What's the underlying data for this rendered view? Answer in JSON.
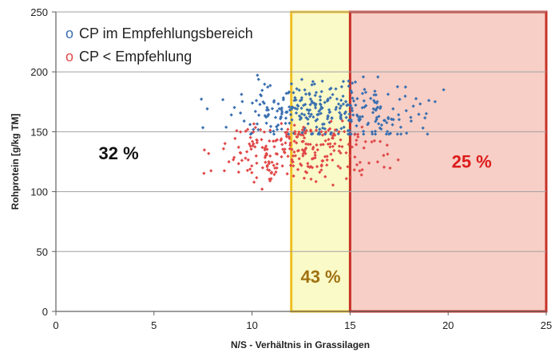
{
  "chart_data": {
    "type": "scatter",
    "title": "",
    "xlabel": "N/S - Verhältnis in Grassilagen",
    "ylabel": "Rohprotein [g/kg TM]",
    "xlim": [
      0,
      25
    ],
    "ylim": [
      0,
      250
    ],
    "x_ticks": [
      "0",
      "5",
      "10",
      "15",
      "20",
      "25"
    ],
    "y_ticks": [
      "0",
      "50",
      "100",
      "150",
      "200",
      "250"
    ],
    "grid": "horizontal",
    "legend_placement": "top-left",
    "series": [
      {
        "name": "CP im Empfehlungsbereich",
        "marker": "o",
        "color": "#3a6fb0",
        "cloud": {
          "count": 330,
          "x_range": [
            5.9,
            21.1
          ],
          "y_range": [
            148,
            224
          ],
          "x_center": 13.8,
          "y_center": 166
        }
      },
      {
        "name": "CP < Empfehlung",
        "marker": "o",
        "color": "#e04848",
        "cloud": {
          "count": 260,
          "x_range": [
            5.6,
            18.0
          ],
          "y_range": [
            82,
            165
          ],
          "x_center": 12.5,
          "y_center": 133
        }
      }
    ],
    "regions": [
      {
        "x_from": 12,
        "x_to": 15,
        "fill": "#fafac8",
        "stroke": "#f0c020"
      },
      {
        "x_from": 15,
        "x_to": 25,
        "fill": "#f7cfc6",
        "stroke": "#c83228"
      }
    ],
    "annotations": [
      {
        "text": "32 %",
        "x": 3.2,
        "y": 127,
        "color": "#111111"
      },
      {
        "text": "43 %",
        "x": 13.5,
        "y": 24,
        "color": "#a07010"
      },
      {
        "text": "25 %",
        "x": 21.2,
        "y": 120,
        "color": "#dd1b1b"
      }
    ]
  }
}
